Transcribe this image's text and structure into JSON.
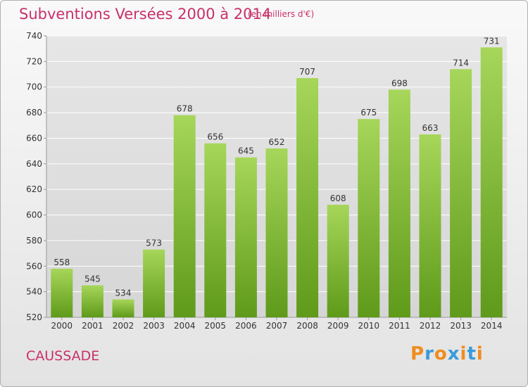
{
  "header": {
    "title": "Subventions Versées 2000 à 2014",
    "subtitle": "(en milliers d'€)"
  },
  "footer": {
    "place": "CAUSSADE",
    "brand": "Proxiti"
  },
  "colors": {
    "accent": "#c8306a",
    "bar_top": "#a6d65a",
    "bar_bottom": "#5f9a1a",
    "grid": "#ffffff",
    "logo_letters": [
      "#f08c1e",
      "#3a9ad9",
      "#f08c1e",
      "#3a9ad9",
      "#f08c1e",
      "#3a9ad9",
      "#f08c1e"
    ]
  },
  "chart_data": {
    "type": "bar",
    "title": "Subventions Versées 2000 à 2014",
    "subtitle": "(en milliers d'€)",
    "categories": [
      "2000",
      "2001",
      "2002",
      "2003",
      "2004",
      "2005",
      "2006",
      "2007",
      "2008",
      "2009",
      "2010",
      "2011",
      "2012",
      "2013",
      "2014"
    ],
    "values": [
      558,
      545,
      534,
      573,
      678,
      656,
      645,
      652,
      707,
      608,
      675,
      698,
      663,
      714,
      731
    ],
    "ylim": [
      520,
      740
    ],
    "yticks": [
      520,
      540,
      560,
      580,
      600,
      620,
      640,
      660,
      680,
      700,
      720,
      740
    ],
    "grid": true,
    "data_labels": true
  }
}
